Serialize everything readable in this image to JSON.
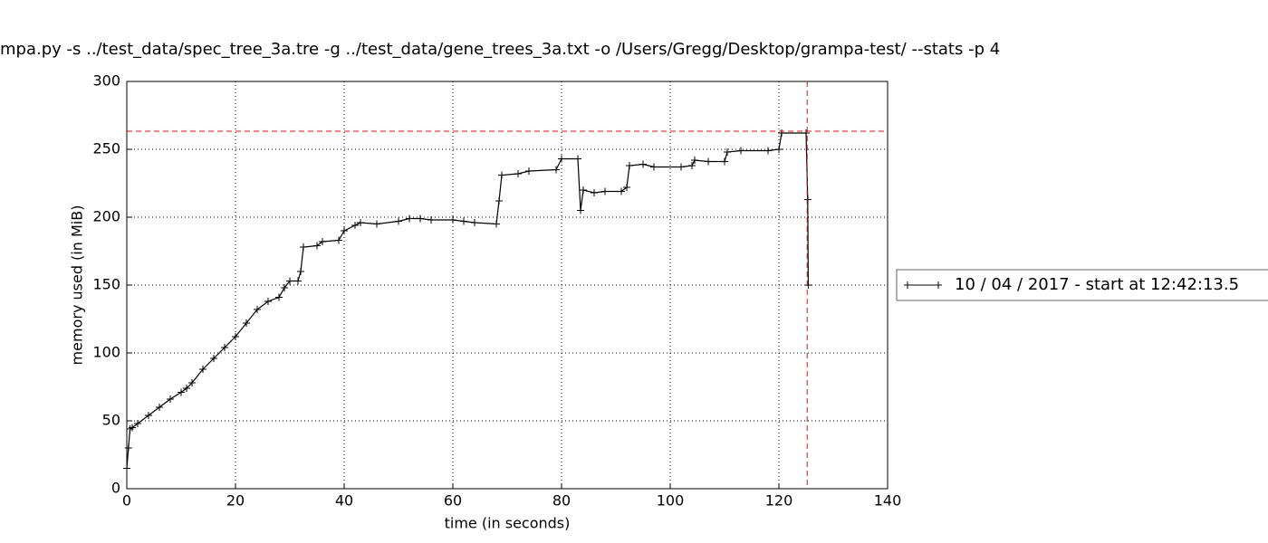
{
  "chart_data": {
    "type": "line",
    "title": "mpa.py -s ../test_data/spec_tree_3a.tre -g ../test_data/gene_trees_3a.txt -o /Users/Gregg/Desktop/grampa-test/ --stats -p 4",
    "x_label": "time (in seconds)",
    "y_label": "memory used (in MiB)",
    "xlim": [
      0,
      140
    ],
    "xticks": [
      0,
      20,
      40,
      60,
      80,
      100,
      120,
      140
    ],
    "ylim": [
      0,
      300
    ],
    "yticks": [
      0,
      50,
      100,
      150,
      200,
      250,
      300
    ],
    "grid": true,
    "legend": "right",
    "series": [
      {
        "name": "10 / 04 / 2017 - start at 12:42:13.5",
        "color": "#000000",
        "x": [
          0,
          0.3,
          0.6,
          1,
          2,
          4,
          6,
          8,
          10,
          11,
          12,
          14,
          16,
          18,
          20,
          22,
          24,
          26,
          28,
          29,
          30,
          31.5,
          32,
          32.5,
          35,
          36,
          39,
          40,
          42,
          43,
          46,
          50,
          52,
          54,
          56,
          60,
          62,
          64,
          68,
          68.5,
          69,
          72,
          74,
          79,
          80,
          83,
          83.5,
          84,
          86,
          88,
          91,
          92,
          92.5,
          95,
          97,
          102,
          104,
          104.5,
          107,
          110,
          110.5,
          113,
          118,
          120,
          120.5,
          125,
          125.3,
          125.4
        ],
        "values": [
          15,
          30,
          44,
          45,
          48,
          54,
          60,
          66,
          71,
          74,
          78,
          88,
          96,
          104,
          112,
          122,
          132,
          138,
          141,
          148,
          153,
          153,
          160,
          178,
          179,
          182,
          183,
          190,
          194,
          196,
          195,
          197,
          199,
          199,
          198,
          198,
          197,
          196,
          195,
          212,
          231,
          232,
          234,
          235,
          243,
          243,
          205,
          220,
          218,
          219,
          219,
          222,
          238,
          239,
          237,
          237,
          238,
          242,
          241,
          241,
          248,
          249,
          249,
          250,
          262,
          262,
          213,
          150
        ]
      }
    ],
    "peak": {
      "x": 125.2,
      "y": 263.3,
      "color": "#ff0000"
    }
  }
}
